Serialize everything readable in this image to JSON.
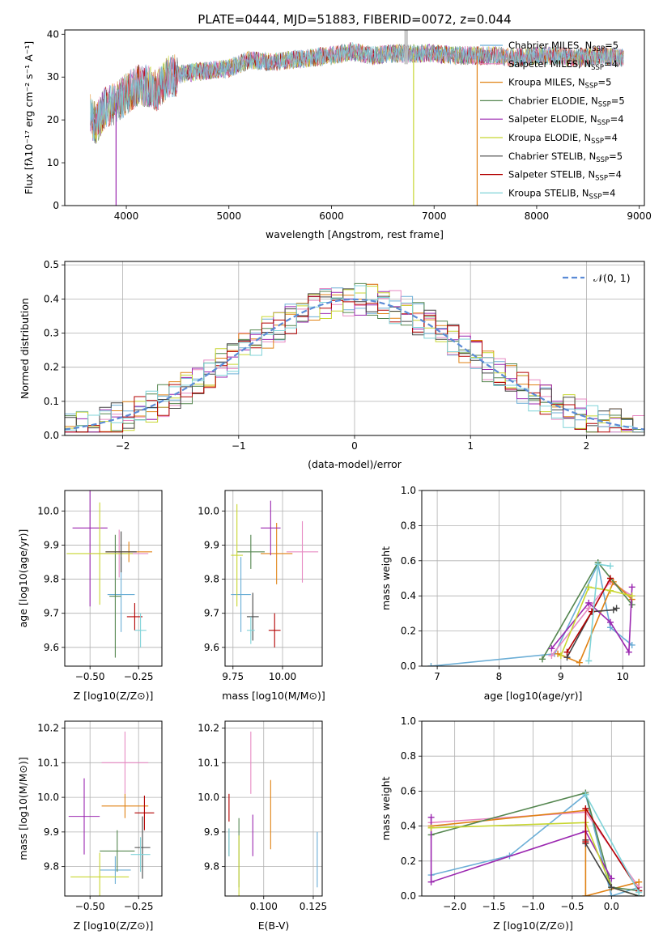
{
  "figure_title": "PLATE=0444, MJD=51883, FIBERID=0072, z=0.044",
  "model_colors": [
    "#6baed6",
    "#e78ac3",
    "#e08214",
    "#54864f",
    "#9b27b0",
    "#c8d631",
    "#444444",
    "#b30000",
    "#7fd3d8"
  ],
  "chart_data": [
    {
      "type": "line",
      "title": "PLATE=0444, MJD=51883, FIBERID=0072, z=0.044",
      "xlabel": "wavelength [Angstrom, rest frame]",
      "ylabel": "Flux [fλ10⁻¹⁷ erg cm⁻² s⁻¹ A⁻¹]",
      "xlim": [
        3400,
        9050
      ],
      "ylim": [
        0,
        41
      ],
      "xticks": [
        4000,
        5000,
        6000,
        7000,
        8000,
        9000
      ],
      "yticks": [
        0,
        10,
        20,
        30,
        40
      ],
      "legend_position": "top-right",
      "legend": [
        "Chabrier MILES, N_SSP=5",
        "Salpeter MILES, N_SSP=4",
        "Kroupa MILES, N_SSP=5",
        "Chabrier ELODIE, N_SSP=5",
        "Salpeter ELODIE, N_SSP=4",
        "Kroupa ELODIE, N_SSP=4",
        "Chabrier STELIB, N_SSP=5",
        "Salpeter STELIB, N_SSP=4",
        "Kroupa STELIB, N_SSP=4"
      ],
      "continuum": {
        "x": [
          3650,
          3700,
          3800,
          3900,
          4000,
          4100,
          4200,
          4300,
          4400,
          4600,
          4800,
          5000,
          5200,
          5400,
          5600,
          5800,
          6000,
          6200,
          6400,
          6600,
          6800,
          7000,
          7200,
          7400,
          7600,
          7800,
          8000,
          8200,
          8400,
          8600,
          8800
        ],
        "y": [
          21,
          19,
          23,
          24,
          26,
          28,
          28,
          27,
          30,
          31,
          31.5,
          32,
          34,
          33.5,
          34,
          34.5,
          35,
          36,
          35,
          35.5,
          35.5,
          35.5,
          35,
          35,
          35,
          34.5,
          35,
          35,
          34.5,
          35,
          34.5
        ]
      },
      "absorption_dips": [
        {
          "x": 3900,
          "y": 0
        },
        {
          "x": 6800,
          "y": 0
        },
        {
          "x": 7420,
          "y": 0
        }
      ]
    },
    {
      "type": "histogram",
      "xlabel": "(data-model)/error",
      "ylabel": "Normed distribution",
      "xlim": [
        -2.5,
        2.5
      ],
      "ylim": [
        0,
        0.51
      ],
      "xticks": [
        -2,
        -1,
        0,
        1,
        2
      ],
      "yticks": [
        0.0,
        0.1,
        0.2,
        0.3,
        0.4,
        0.5
      ],
      "grid": true,
      "legend_position": "top-right",
      "legend": [
        "𝒩(0, 1)"
      ],
      "bin_width": 0.1,
      "reference_curve": {
        "name": "𝒩(0, 1)",
        "mean": 0,
        "sigma": 1
      }
    },
    {
      "type": "errorbar",
      "xlabel": "Z [log10(Z/Z⊙)]",
      "ylabel": "age  [log10(age/yr)]",
      "xlim": [
        -0.63,
        -0.13
      ],
      "ylim": [
        9.545,
        10.06
      ],
      "xticks": [
        -0.5,
        -0.25
      ],
      "yticks": [
        9.6,
        9.7,
        9.8,
        9.9,
        10.0
      ],
      "grid": true,
      "points": [
        {
          "x": -0.34,
          "y": 9.755,
          "xerr": 0.07,
          "yerr": 0.11
        },
        {
          "x": -0.35,
          "y": 9.875,
          "xerr": 0.15,
          "yerr": 0.07
        },
        {
          "x": -0.3,
          "y": 9.88,
          "xerr": 0.12,
          "yerr": 0.03
        },
        {
          "x": -0.37,
          "y": 9.75,
          "xerr": 0.03,
          "yerr": 0.18
        },
        {
          "x": -0.5,
          "y": 9.95,
          "xerr": 0.09,
          "yerr": 0.23
        },
        {
          "x": -0.45,
          "y": 9.875,
          "xerr": 0.17,
          "yerr": 0.15
        },
        {
          "x": -0.34,
          "y": 9.88,
          "xerr": 0.08,
          "yerr": 0.06
        },
        {
          "x": -0.27,
          "y": 9.69,
          "xerr": 0.04,
          "yerr": 0.04
        },
        {
          "x": -0.24,
          "y": 9.65,
          "xerr": 0.03,
          "yerr": 0.05
        }
      ]
    },
    {
      "type": "errorbar",
      "xlabel": "mass [log10(M/M⊙)]",
      "ylabel": "",
      "xlim": [
        9.71,
        10.2
      ],
      "ylim": [
        9.545,
        10.06
      ],
      "xticks": [
        9.75,
        10.0
      ],
      "yticks": [
        9.6,
        9.7,
        9.8,
        9.9,
        10.0
      ],
      "grid": true,
      "points": [
        {
          "x": 9.79,
          "y": 9.755,
          "xerr": 0.05,
          "yerr": 0.11
        },
        {
          "x": 10.1,
          "y": 9.88,
          "xerr": 0.08,
          "yerr": 0.09
        },
        {
          "x": 9.97,
          "y": 9.875,
          "xerr": 0.08,
          "yerr": 0.09
        },
        {
          "x": 9.84,
          "y": 9.88,
          "xerr": 0.07,
          "yerr": 0.05
        },
        {
          "x": 9.94,
          "y": 9.95,
          "xerr": 0.05,
          "yerr": 0.08
        },
        {
          "x": 9.77,
          "y": 9.87,
          "xerr": 0.03,
          "yerr": 0.15
        },
        {
          "x": 9.85,
          "y": 9.69,
          "xerr": 0.03,
          "yerr": 0.07
        },
        {
          "x": 9.96,
          "y": 9.65,
          "xerr": 0.03,
          "yerr": 0.05
        },
        {
          "x": 9.84,
          "y": 9.65,
          "xerr": 0.02,
          "yerr": 0.04
        }
      ]
    },
    {
      "type": "line",
      "xlabel": "age  [log10(age/yr)]",
      "ylabel": "mass weight",
      "xlim": [
        6.75,
        10.35
      ],
      "ylim": [
        0,
        1.0
      ],
      "xticks": [
        7,
        8,
        9,
        10
      ],
      "yticks": [
        0.0,
        0.2,
        0.4,
        0.6,
        0.8,
        1.0
      ],
      "grid": true,
      "series": [
        {
          "x": [
            6.9,
            8.9,
            9.6,
            9.8,
            10.15
          ],
          "y": [
            0.0,
            0.07,
            0.58,
            0.22,
            0.12
          ]
        },
        {
          "x": [
            8.85,
            9.45,
            9.8,
            10.15
          ],
          "y": [
            0.06,
            0.33,
            0.48,
            0.4
          ]
        },
        {
          "x": [
            8.95,
            9.3,
            9.85,
            10.15
          ],
          "y": [
            0.07,
            0.02,
            0.48,
            0.38
          ]
        },
        {
          "x": [
            8.7,
            9.6,
            10.15
          ],
          "y": [
            0.04,
            0.59,
            0.35
          ]
        },
        {
          "x": [
            8.85,
            9.45,
            9.8,
            10.1,
            10.15
          ],
          "y": [
            0.1,
            0.36,
            0.25,
            0.08,
            0.45
          ]
        },
        {
          "x": [
            9.0,
            9.45,
            9.8,
            10.15
          ],
          "y": [
            0.06,
            0.45,
            0.43,
            0.4
          ]
        },
        {
          "x": [
            9.1,
            9.5,
            9.85,
            9.9
          ],
          "y": [
            0.05,
            0.31,
            0.32,
            0.33
          ]
        },
        {
          "x": [
            9.1,
            9.5,
            9.8
          ],
          "y": [
            0.08,
            0.31,
            0.5
          ]
        },
        {
          "x": [
            9.45,
            9.6,
            9.8
          ],
          "y": [
            0.03,
            0.58,
            0.57
          ]
        }
      ]
    },
    {
      "type": "errorbar",
      "xlabel": "Z [log10(Z/Z⊙)]",
      "ylabel": "mass [log10(M/M⊙)]",
      "xlim": [
        -0.63,
        -0.13
      ],
      "ylim": [
        9.715,
        10.22
      ],
      "xticks": [
        -0.5,
        -0.25
      ],
      "yticks": [
        9.8,
        9.9,
        10.0,
        10.1,
        10.2
      ],
      "grid": true,
      "points": [
        {
          "x": -0.37,
          "y": 9.79,
          "xerr": 0.08,
          "yerr": 0.04
        },
        {
          "x": -0.32,
          "y": 10.1,
          "xerr": 0.12,
          "yerr": 0.09
        },
        {
          "x": -0.32,
          "y": 9.975,
          "xerr": 0.12,
          "yerr": 0.035
        },
        {
          "x": -0.36,
          "y": 9.845,
          "xerr": 0.09,
          "yerr": 0.06
        },
        {
          "x": -0.53,
          "y": 9.945,
          "xerr": 0.08,
          "yerr": 0.11
        },
        {
          "x": -0.45,
          "y": 9.77,
          "xerr": 0.15,
          "yerr": 0.07
        },
        {
          "x": -0.23,
          "y": 9.855,
          "xerr": 0.04,
          "yerr": 0.09
        },
        {
          "x": -0.22,
          "y": 9.955,
          "xerr": 0.05,
          "yerr": 0.05
        },
        {
          "x": -0.24,
          "y": 9.835,
          "xerr": 0.05,
          "yerr": 0.05
        }
      ]
    },
    {
      "type": "errorbar",
      "xlabel": "E(B-V)",
      "ylabel": "",
      "xlim": [
        0.0805,
        0.1295
      ],
      "ylim": [
        9.715,
        10.22
      ],
      "xticks": [
        0.1,
        0.125
      ],
      "yticks": [
        9.8,
        9.9,
        10.0,
        10.1,
        10.2
      ],
      "grid": true,
      "points": [
        {
          "x": 0.127,
          "y": 9.82,
          "xerr": 0,
          "yerr": 0.08
        },
        {
          "x": 0.0935,
          "y": 10.1,
          "xerr": 0,
          "yerr": 0.09
        },
        {
          "x": 0.1035,
          "y": 9.95,
          "xerr": 0,
          "yerr": 0.1
        },
        {
          "x": 0.0875,
          "y": 9.84,
          "xerr": 0,
          "yerr": 0.1
        },
        {
          "x": 0.0945,
          "y": 9.89,
          "xerr": 0,
          "yerr": 0.06
        },
        {
          "x": 0.0875,
          "y": 9.8,
          "xerr": 0,
          "yerr": 0.09
        },
        {
          "x": 0.0825,
          "y": 9.87,
          "xerr": 0,
          "yerr": 0.04
        },
        {
          "x": 0.0825,
          "y": 9.97,
          "xerr": 0,
          "yerr": 0.04
        },
        {
          "x": 0.0825,
          "y": 9.87,
          "xerr": 0,
          "yerr": 0.04
        }
      ]
    },
    {
      "type": "line",
      "xlabel": "Z [log10(Z/Z⊙)]",
      "ylabel": "mass weight",
      "xlim": [
        -2.42,
        0.42
      ],
      "ylim": [
        0,
        1.0
      ],
      "xticks": [
        -2.0,
        -1.5,
        -1.0,
        -0.5,
        0.0
      ],
      "yticks": [
        0.0,
        0.2,
        0.4,
        0.6,
        0.8,
        1.0
      ],
      "grid": true,
      "series": [
        {
          "x": [
            -2.3,
            -1.3,
            -0.33,
            0.0,
            0.35
          ],
          "y": [
            0.12,
            0.23,
            0.58,
            0.0,
            0.05
          ]
        },
        {
          "x": [
            -2.3,
            -0.33,
            0.35
          ],
          "y": [
            0.42,
            0.48,
            0.05
          ]
        },
        {
          "x": [
            -2.3,
            -0.33,
            -0.33,
            0.35
          ],
          "y": [
            0.4,
            0.49,
            0.0,
            0.08
          ]
        },
        {
          "x": [
            -2.3,
            -0.33,
            0.0,
            0.35
          ],
          "y": [
            0.35,
            0.59,
            0.05,
            0.03
          ]
        },
        {
          "x": [
            -2.3,
            -2.3,
            -0.33,
            0.0
          ],
          "y": [
            0.45,
            0.08,
            0.37,
            0.1
          ]
        },
        {
          "x": [
            -2.3,
            -0.33,
            0.0,
            0.35
          ],
          "y": [
            0.39,
            0.42,
            0.05,
            0.0
          ]
        },
        {
          "x": [
            -0.33,
            -0.33,
            0.0,
            0.35
          ],
          "y": [
            0.32,
            0.3,
            0.05,
            0.0
          ]
        },
        {
          "x": [
            -0.33,
            -0.33,
            0.35
          ],
          "y": [
            0.31,
            0.5,
            0.03
          ]
        },
        {
          "x": [
            -0.33,
            0.35
          ],
          "y": [
            0.58,
            0.02
          ]
        }
      ]
    }
  ]
}
